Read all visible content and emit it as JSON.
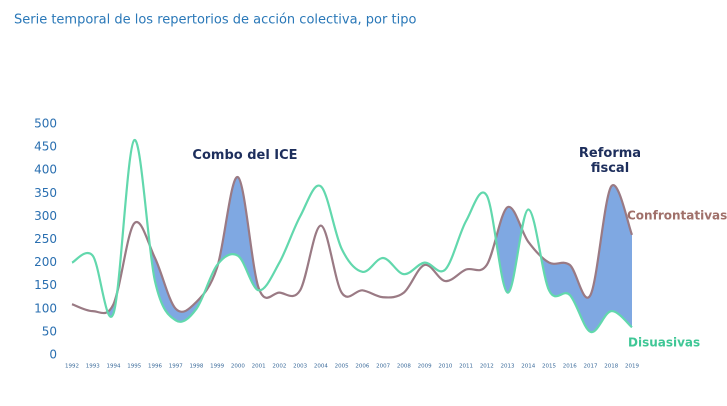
{
  "chart_data": {
    "type": "line",
    "title": "Serie temporal de los repertorios de acción colectiva, por tipo",
    "categories": [
      "1992",
      "1993",
      "1994",
      "1995",
      "1996",
      "1997",
      "1998",
      "1999",
      "2000",
      "2001",
      "2002",
      "2003",
      "2004",
      "2005",
      "2006",
      "2007",
      "2008",
      "2009",
      "2010",
      "2011",
      "2012",
      "2013",
      "2014",
      "2015",
      "2016",
      "2017",
      "2018",
      "2019"
    ],
    "series": [
      {
        "name": "Confrontativas",
        "color": "#9a7a84",
        "label_color": "#a0706a",
        "values": [
          110,
          95,
          110,
          285,
          210,
          100,
          115,
          190,
          385,
          145,
          135,
          140,
          280,
          135,
          140,
          125,
          135,
          195,
          160,
          185,
          195,
          320,
          245,
          200,
          195,
          130,
          365,
          260
        ]
      },
      {
        "name": "Disuasivas",
        "color": "#62d8ad",
        "label_color": "#3fc796",
        "values": [
          200,
          215,
          90,
          465,
          160,
          75,
          100,
          195,
          215,
          140,
          200,
          300,
          365,
          230,
          180,
          210,
          175,
          200,
          185,
          290,
          345,
          135,
          315,
          140,
          130,
          50,
          95,
          60
        ]
      }
    ],
    "fill_between_color": "#7fa8e2",
    "annotations": [
      "Combo del ICE",
      "Reforma fiscal"
    ],
    "ylim": [
      0,
      500
    ],
    "yticks": [
      0,
      50,
      100,
      150,
      200,
      250,
      300,
      350,
      400,
      450,
      500
    ],
    "grid": false
  }
}
